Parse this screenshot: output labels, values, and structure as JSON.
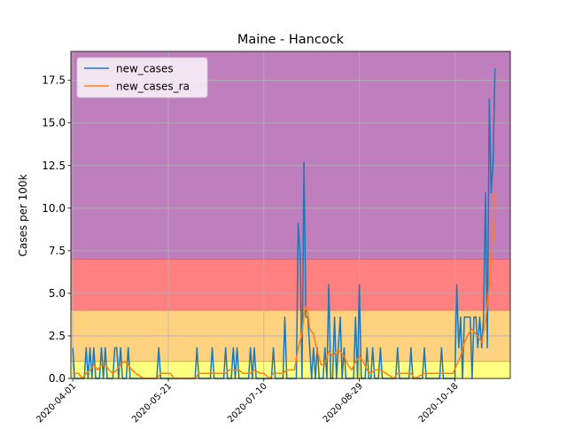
{
  "chart_data": {
    "type": "line",
    "title": "Maine - Hancock",
    "xlabel": "",
    "ylabel": "Cases per 100k",
    "x_start": "2020-03-31",
    "x_end": "2020-11-16",
    "ylim": [
      0,
      19.2
    ],
    "yticks": [
      0.0,
      2.5,
      5.0,
      7.5,
      10.0,
      12.5,
      15.0,
      17.5
    ],
    "ytick_labels": [
      "0.0",
      "2.5",
      "5.0",
      "7.5",
      "10.0",
      "12.5",
      "15.0",
      "17.5"
    ],
    "xticks": [
      "2020-04-01",
      "2020-05-21",
      "2020-07-10",
      "2020-08-29",
      "2020-10-18"
    ],
    "xtick_labels": [
      "2020-04-01",
      "2020-05-21",
      "2020-07-10",
      "2020-08-29",
      "2020-10-18"
    ],
    "grid": true,
    "legend_position": "top-left",
    "bands": [
      {
        "from": 0,
        "to": 1,
        "color": "#ffff80"
      },
      {
        "from": 1,
        "to": 4,
        "color": "#ffd280"
      },
      {
        "from": 4,
        "to": 7,
        "color": "#ff8080"
      },
      {
        "from": 7,
        "to": 19.2,
        "color": "#bf7fbf"
      }
    ],
    "series": [
      {
        "name": "new_cases",
        "color": "#1f77b4",
        "points": [
          [
            "2020-04-01",
            1.8
          ],
          [
            "2020-04-02",
            0
          ],
          [
            "2020-04-07",
            0
          ],
          [
            "2020-04-08",
            1.8
          ],
          [
            "2020-04-09",
            0
          ],
          [
            "2020-04-10",
            1.8
          ],
          [
            "2020-04-11",
            0
          ],
          [
            "2020-04-12",
            1.8
          ],
          [
            "2020-04-13",
            0
          ],
          [
            "2020-04-15",
            0
          ],
          [
            "2020-04-16",
            1.8
          ],
          [
            "2020-04-17",
            0
          ],
          [
            "2020-04-18",
            1.8
          ],
          [
            "2020-04-19",
            0
          ],
          [
            "2020-04-22",
            0
          ],
          [
            "2020-04-23",
            1.8
          ],
          [
            "2020-04-24",
            1.8
          ],
          [
            "2020-04-25",
            0
          ],
          [
            "2020-04-26",
            1.8
          ],
          [
            "2020-04-27",
            0
          ],
          [
            "2020-04-29",
            0
          ],
          [
            "2020-04-30",
            1.8
          ],
          [
            "2020-05-01",
            0
          ],
          [
            "2020-05-15",
            0
          ],
          [
            "2020-05-16",
            1.8
          ],
          [
            "2020-05-17",
            0
          ],
          [
            "2020-06-04",
            0
          ],
          [
            "2020-06-05",
            1.8
          ],
          [
            "2020-06-06",
            0
          ],
          [
            "2020-06-12",
            0
          ],
          [
            "2020-06-13",
            1.8
          ],
          [
            "2020-06-14",
            0
          ],
          [
            "2020-06-19",
            0
          ],
          [
            "2020-06-20",
            1.8
          ],
          [
            "2020-06-21",
            0
          ],
          [
            "2020-06-23",
            0
          ],
          [
            "2020-06-24",
            1.8
          ],
          [
            "2020-06-25",
            0
          ],
          [
            "2020-06-26",
            1.8
          ],
          [
            "2020-06-27",
            0
          ],
          [
            "2020-07-02",
            0
          ],
          [
            "2020-07-03",
            1.8
          ],
          [
            "2020-07-04",
            0
          ],
          [
            "2020-07-05",
            1.8
          ],
          [
            "2020-07-06",
            0
          ],
          [
            "2020-07-14",
            0
          ],
          [
            "2020-07-15",
            1.8
          ],
          [
            "2020-07-16",
            0
          ],
          [
            "2020-07-20",
            0
          ],
          [
            "2020-07-21",
            3.6
          ],
          [
            "2020-07-22",
            0
          ],
          [
            "2020-07-27",
            0
          ],
          [
            "2020-07-28",
            9.1
          ],
          [
            "2020-07-29",
            7.3
          ],
          [
            "2020-07-30",
            0
          ],
          [
            "2020-07-31",
            12.7
          ],
          [
            "2020-08-01",
            3.6
          ],
          [
            "2020-08-02",
            3.6
          ],
          [
            "2020-08-03",
            1.8
          ],
          [
            "2020-08-04",
            0
          ],
          [
            "2020-08-05",
            1.8
          ],
          [
            "2020-08-06",
            0
          ],
          [
            "2020-08-07",
            1.8
          ],
          [
            "2020-08-08",
            0
          ],
          [
            "2020-08-10",
            0
          ],
          [
            "2020-08-11",
            1.8
          ],
          [
            "2020-08-12",
            0
          ],
          [
            "2020-08-13",
            5.5
          ],
          [
            "2020-08-14",
            0
          ],
          [
            "2020-08-15",
            0
          ],
          [
            "2020-08-16",
            3.6
          ],
          [
            "2020-08-17",
            0
          ],
          [
            "2020-08-18",
            1.8
          ],
          [
            "2020-08-19",
            3.6
          ],
          [
            "2020-08-20",
            0
          ],
          [
            "2020-08-21",
            1.8
          ],
          [
            "2020-08-22",
            0
          ],
          [
            "2020-08-24",
            0
          ],
          [
            "2020-08-25",
            0
          ],
          [
            "2020-08-26",
            0
          ],
          [
            "2020-08-27",
            3.6
          ],
          [
            "2020-08-28",
            0
          ],
          [
            "2020-08-29",
            5.5
          ],
          [
            "2020-08-30",
            0
          ],
          [
            "2020-09-01",
            0
          ],
          [
            "2020-09-02",
            1.8
          ],
          [
            "2020-09-03",
            0
          ],
          [
            "2020-09-04",
            0
          ],
          [
            "2020-09-05",
            1.8
          ],
          [
            "2020-09-06",
            0
          ],
          [
            "2020-09-08",
            0
          ],
          [
            "2020-09-09",
            1.8
          ],
          [
            "2020-09-10",
            0
          ],
          [
            "2020-09-17",
            0
          ],
          [
            "2020-09-18",
            1.8
          ],
          [
            "2020-09-19",
            0
          ],
          [
            "2020-09-24",
            0
          ],
          [
            "2020-09-25",
            1.8
          ],
          [
            "2020-09-26",
            0
          ],
          [
            "2020-10-01",
            0
          ],
          [
            "2020-10-02",
            1.8
          ],
          [
            "2020-10-03",
            0
          ],
          [
            "2020-10-10",
            0
          ],
          [
            "2020-10-11",
            1.8
          ],
          [
            "2020-10-12",
            0
          ],
          [
            "2020-10-18",
            0
          ],
          [
            "2020-10-19",
            5.5
          ],
          [
            "2020-10-20",
            1.8
          ],
          [
            "2020-10-21",
            3.6
          ],
          [
            "2020-10-22",
            0
          ],
          [
            "2020-10-23",
            3.6
          ],
          [
            "2020-10-24",
            3.6
          ],
          [
            "2020-10-25",
            3.6
          ],
          [
            "2020-10-26",
            3.6
          ],
          [
            "2020-10-27",
            0
          ],
          [
            "2020-10-28",
            3.6
          ],
          [
            "2020-10-29",
            3.6
          ],
          [
            "2020-10-30",
            1.8
          ],
          [
            "2020-10-31",
            3.6
          ],
          [
            "2020-11-01",
            1.8
          ],
          [
            "2020-11-02",
            3.6
          ],
          [
            "2020-11-03",
            10.9
          ],
          [
            "2020-11-04",
            1.8
          ],
          [
            "2020-11-05",
            16.4
          ],
          [
            "2020-11-06",
            10.9
          ],
          [
            "2020-11-07",
            12.7
          ],
          [
            "2020-11-08",
            18.2
          ]
        ]
      },
      {
        "name": "new_cases_ra",
        "color": "#ff7f0e",
        "points": [
          [
            "2020-04-01",
            0.3
          ],
          [
            "2020-04-04",
            0.3
          ],
          [
            "2020-04-06",
            0.0
          ],
          [
            "2020-04-08",
            0.3
          ],
          [
            "2020-04-10",
            0.5
          ],
          [
            "2020-04-12",
            0.8
          ],
          [
            "2020-04-14",
            0.5
          ],
          [
            "2020-04-16",
            0.8
          ],
          [
            "2020-04-18",
            0.8
          ],
          [
            "2020-04-20",
            0.5
          ],
          [
            "2020-04-22",
            0.3
          ],
          [
            "2020-04-24",
            0.5
          ],
          [
            "2020-04-26",
            0.8
          ],
          [
            "2020-04-28",
            1.0
          ],
          [
            "2020-04-30",
            0.8
          ],
          [
            "2020-05-02",
            0.5
          ],
          [
            "2020-05-04",
            0.3
          ],
          [
            "2020-05-08",
            0.0
          ],
          [
            "2020-05-15",
            0.0
          ],
          [
            "2020-05-17",
            0.3
          ],
          [
            "2020-05-22",
            0.3
          ],
          [
            "2020-05-24",
            0.0
          ],
          [
            "2020-06-04",
            0.0
          ],
          [
            "2020-06-06",
            0.3
          ],
          [
            "2020-06-12",
            0.3
          ],
          [
            "2020-06-14",
            0.3
          ],
          [
            "2020-06-20",
            0.3
          ],
          [
            "2020-06-22",
            0.5
          ],
          [
            "2020-06-24",
            0.5
          ],
          [
            "2020-06-27",
            0.5
          ],
          [
            "2020-06-29",
            0.3
          ],
          [
            "2020-07-03",
            0.3
          ],
          [
            "2020-07-05",
            0.5
          ],
          [
            "2020-07-08",
            0.3
          ],
          [
            "2020-07-10",
            0.3
          ],
          [
            "2020-07-13",
            0.0
          ],
          [
            "2020-07-15",
            0.3
          ],
          [
            "2020-07-20",
            0.3
          ],
          [
            "2020-07-22",
            0.5
          ],
          [
            "2020-07-26",
            0.5
          ],
          [
            "2020-07-28",
            1.8
          ],
          [
            "2020-07-30",
            2.6
          ],
          [
            "2020-07-31",
            3.8
          ],
          [
            "2020-08-01",
            4.2
          ],
          [
            "2020-08-02",
            3.9
          ],
          [
            "2020-08-03",
            2.9
          ],
          [
            "2020-08-05",
            2.6
          ],
          [
            "2020-08-07",
            1.6
          ],
          [
            "2020-08-09",
            0.8
          ],
          [
            "2020-08-11",
            0.8
          ],
          [
            "2020-08-13",
            1.6
          ],
          [
            "2020-08-15",
            1.3
          ],
          [
            "2020-08-17",
            1.6
          ],
          [
            "2020-08-19",
            1.6
          ],
          [
            "2020-08-21",
            1.3
          ],
          [
            "2020-08-23",
            0.8
          ],
          [
            "2020-08-25",
            0.5
          ],
          [
            "2020-08-27",
            1.0
          ],
          [
            "2020-08-29",
            1.3
          ],
          [
            "2020-08-31",
            1.0
          ],
          [
            "2020-09-02",
            0.5
          ],
          [
            "2020-09-04",
            0.3
          ],
          [
            "2020-09-06",
            0.5
          ],
          [
            "2020-09-09",
            0.5
          ],
          [
            "2020-09-12",
            0.3
          ],
          [
            "2020-09-16",
            0.0
          ],
          [
            "2020-09-18",
            0.3
          ],
          [
            "2020-09-25",
            0.3
          ],
          [
            "2020-09-27",
            0.0
          ],
          [
            "2020-10-02",
            0.3
          ],
          [
            "2020-10-09",
            0.3
          ],
          [
            "2020-10-11",
            0.3
          ],
          [
            "2020-10-17",
            0.3
          ],
          [
            "2020-10-19",
            0.8
          ],
          [
            "2020-10-21",
            1.3
          ],
          [
            "2020-10-23",
            2.1
          ],
          [
            "2020-10-25",
            2.6
          ],
          [
            "2020-10-27",
            2.9
          ],
          [
            "2020-10-29",
            2.6
          ],
          [
            "2020-10-31",
            2.3
          ],
          [
            "2020-11-01",
            2.1
          ],
          [
            "2020-11-03",
            3.4
          ],
          [
            "2020-11-05",
            5.5
          ],
          [
            "2020-11-07",
            8.6
          ],
          [
            "2020-11-08",
            10.9
          ]
        ]
      }
    ]
  }
}
